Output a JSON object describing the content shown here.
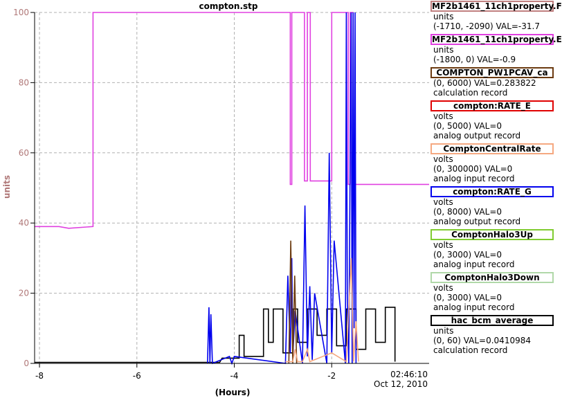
{
  "chart_data": {
    "type": "line",
    "title": "compton.stp",
    "ylabel": "units",
    "xlabel": "(Hours)",
    "timestamp": [
      "02:46:10",
      "Oct 12, 2010"
    ],
    "xlim": [
      -8.1,
      0
    ],
    "ylim": [
      0,
      100
    ],
    "x_ticks": [
      -8,
      -6,
      -4,
      -2
    ],
    "y_ticks": [
      0,
      20,
      40,
      60,
      80,
      100
    ],
    "grid": true,
    "series": [
      {
        "name": "MF2b1461_11ch1property.E",
        "color": "#e040e0",
        "x": [
          -8.1,
          -7.6,
          -7.4,
          -6.9,
          -6.9,
          -2.85,
          -2.85,
          -2.82,
          -2.82,
          -2.56,
          -2.56,
          -2.5,
          -2.5,
          -2.44,
          -2.44,
          -2.0,
          -2.0,
          -1.66,
          -1.66,
          -1.62,
          -1.62,
          -1.56,
          -1.56,
          0.0
        ],
        "y": [
          39,
          39,
          38.5,
          39,
          100,
          100,
          51,
          51,
          100,
          100,
          52,
          52,
          100,
          100,
          52,
          52,
          100,
          100,
          51,
          51,
          100,
          100,
          51,
          51
        ]
      },
      {
        "name": "hac_bcm_average",
        "color": "#000000",
        "x": [
          -8.1,
          -4.3,
          -4.25,
          -4.0,
          -3.9,
          -3.9,
          -3.8,
          -3.8,
          -3.4,
          -3.4,
          -3.3,
          -3.3,
          -3.2,
          -3.2,
          -3.0,
          -3.0,
          -2.8,
          -2.8,
          -2.7,
          -2.7,
          -2.5,
          -2.5,
          -2.3,
          -2.3,
          -2.1,
          -2.1,
          -1.9,
          -1.9,
          -1.7,
          -1.7,
          -1.5,
          -1.5,
          -1.3,
          -1.3,
          -1.1,
          -1.1,
          -0.9,
          -0.9,
          -0.7,
          -0.7
        ],
        "y": [
          0.3,
          0.3,
          1.5,
          1.5,
          1.5,
          8,
          8,
          2,
          2,
          15.5,
          15.5,
          6,
          6,
          15.5,
          15.5,
          3,
          3,
          15.5,
          15.5,
          6,
          6,
          15.5,
          15.5,
          8,
          8,
          15.5,
          15.5,
          5,
          5,
          15.5,
          15.5,
          4,
          4,
          15.5,
          15.5,
          6,
          6,
          16,
          16,
          0.5
        ]
      },
      {
        "name": "compton:RATE_G",
        "color": "#0000ee",
        "x": [
          -4.55,
          -4.52,
          -4.5,
          -4.48,
          -4.45,
          -4.1,
          -4.05,
          -4.0,
          -2.95,
          -2.9,
          -2.85,
          -2.82,
          -2.8,
          -2.75,
          -2.6,
          -2.55,
          -2.5,
          -2.45,
          -2.4,
          -2.35,
          -2.1,
          -2.05,
          -2.0,
          -1.95,
          -1.72,
          -1.7,
          -1.68,
          -1.65,
          -1.6,
          -1.58,
          -1.56,
          -1.54,
          -1.52,
          -1.5
        ],
        "y": [
          0,
          16,
          0,
          14,
          0,
          2,
          0,
          2,
          0,
          25,
          3,
          30,
          2,
          15,
          0,
          45,
          2,
          22,
          1,
          20,
          0,
          60,
          3,
          35,
          0,
          100,
          20,
          0,
          100,
          0,
          100,
          10,
          100,
          0
        ]
      },
      {
        "name": "COMPTON_PW1PCAV_ca",
        "color": "#6b3a10",
        "x": [
          -2.88,
          -2.84,
          -2.8,
          -2.76,
          -2.72
        ],
        "y": [
          0,
          35,
          0,
          25,
          0
        ]
      },
      {
        "name": "ComptonCentralRate",
        "color": "#f5a880",
        "x": [
          -2.95,
          -2.8,
          -2.75,
          -2.7,
          -2.6,
          -2.5,
          -2.45,
          -2.0,
          -1.7,
          -1.6,
          -1.55,
          -1.5,
          -1.45
        ],
        "y": [
          0.5,
          0.5,
          4,
          0.5,
          0.5,
          4,
          0.5,
          3,
          0.5,
          30,
          0.5,
          12,
          0.5
        ]
      }
    ]
  },
  "legend": [
    {
      "name": "MF2b1461_11ch1property.F",
      "border": "#c08080",
      "lines": [
        "units",
        "(-1710, -2090) VAL=-31.7"
      ]
    },
    {
      "name": "MF2b1461_11ch1property.E",
      "border": "#e040e0",
      "lines": [
        "units",
        "(-1800, 0) VAL=-0.9"
      ]
    },
    {
      "name": "COMPTON_PW1PCAV_ca",
      "border": "#6b3a10",
      "lines": [
        "(0, 6000) VAL=0.283822",
        "calculation record"
      ]
    },
    {
      "name": "compton:RATE_E",
      "border": "#e00000",
      "lines": [
        "volts",
        "(0, 5000) VAL=0",
        "analog output record"
      ]
    },
    {
      "name": "ComptonCentralRate",
      "border": "#f5a880",
      "lines": [
        "volts",
        "(0, 300000) VAL=0",
        "analog input record"
      ]
    },
    {
      "name": "compton:RATE_G",
      "border": "#0000ee",
      "lines": [
        "volts",
        "(0, 8000) VAL=0",
        "analog output record"
      ]
    },
    {
      "name": "ComptonHalo3Up",
      "border": "#80cc30",
      "lines": [
        "volts",
        "(0, 3000) VAL=0",
        "analog input record"
      ]
    },
    {
      "name": "ComptonHalo3Down",
      "border": "#b0d8a8",
      "lines": [
        "volts",
        "(0, 3000) VAL=0",
        "analog input record"
      ]
    },
    {
      "name": "hac_bcm_average",
      "border": "#000000",
      "lines": [
        "units",
        "(0, 60) VAL=0.0410984",
        "calculation record"
      ]
    }
  ],
  "colors": {
    "axis_label": "#b07878",
    "grid": "#b0b0b0"
  }
}
